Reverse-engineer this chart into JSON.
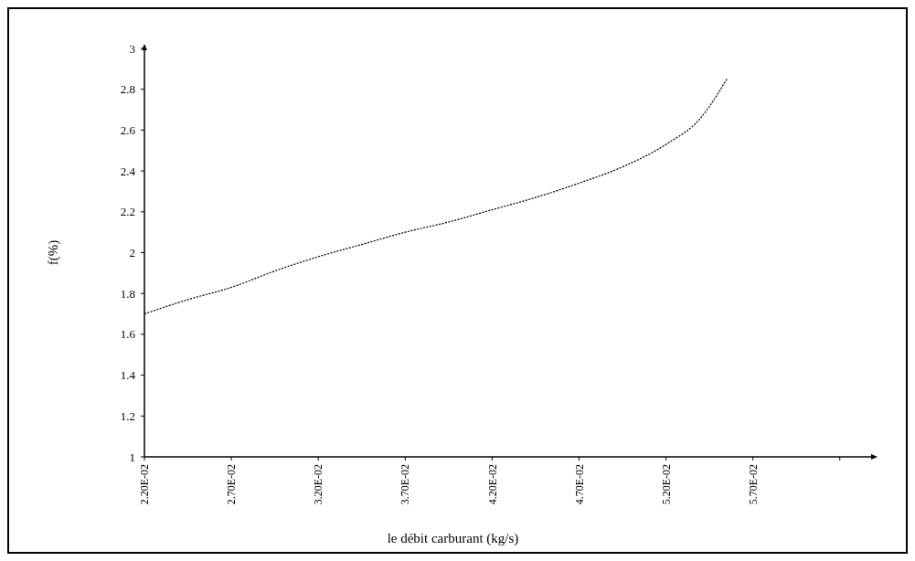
{
  "chart_data": {
    "type": "line",
    "xlabel": "le débit carburant (kg/s)",
    "ylabel": "f(%)",
    "series": [
      {
        "color": "#000000",
        "x": [
          0.022,
          0.0245,
          0.027,
          0.0295,
          0.032,
          0.0345,
          0.037,
          0.0395,
          0.042,
          0.0445,
          0.047,
          0.0495,
          0.052,
          0.054,
          0.0555
        ],
        "values": [
          1.7,
          1.77,
          1.83,
          1.91,
          1.98,
          2.04,
          2.1,
          2.15,
          2.21,
          2.27,
          2.34,
          2.42,
          2.53,
          2.66,
          2.85
        ]
      }
    ],
    "xlim": [
      0.022,
      0.0638
    ],
    "xticks": [
      {
        "value": 0.022,
        "label": "2.20E-02"
      },
      {
        "value": 0.027,
        "label": "2.70E-02"
      },
      {
        "value": 0.032,
        "label": "3.20E-02"
      },
      {
        "value": 0.037,
        "label": "3.70E-02"
      },
      {
        "value": 0.042,
        "label": "4.20E-02"
      },
      {
        "value": 0.047,
        "label": "4.70E-02"
      },
      {
        "value": 0.052,
        "label": "5.20E-02"
      },
      {
        "value": 0.057,
        "label": "5.70E-02"
      },
      {
        "value": 0.062,
        "label": null
      }
    ],
    "ylim": [
      1,
      3
    ],
    "yticks": [
      1,
      1.2,
      1.4,
      1.6,
      1.8,
      2,
      2.2,
      2.4,
      2.6,
      2.8,
      3
    ],
    "grid": false,
    "marker": "none",
    "line_style": "dashed"
  }
}
